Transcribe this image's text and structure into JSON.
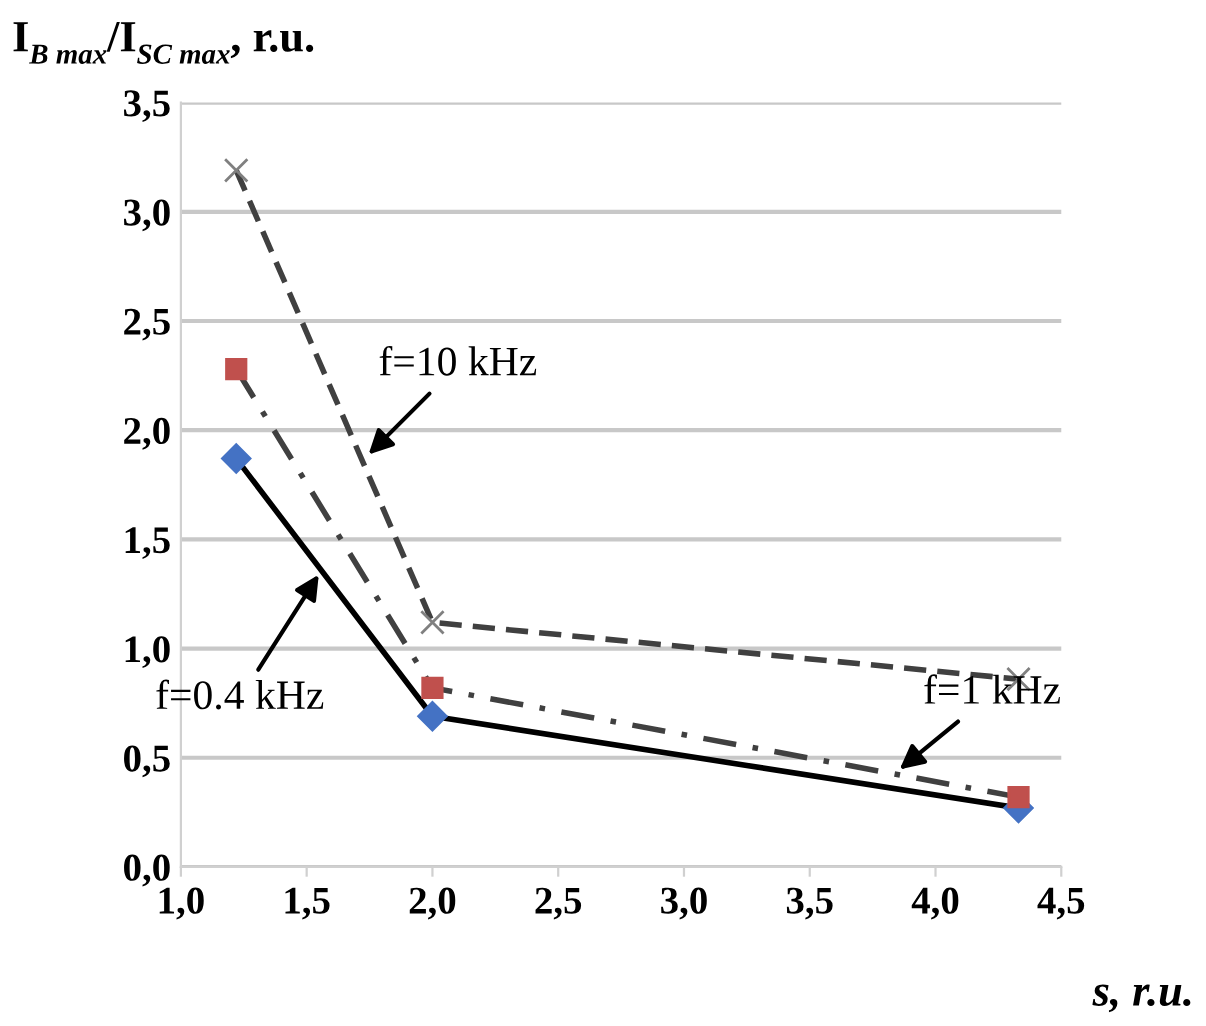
{
  "chart_data": {
    "type": "line",
    "ylabel": "I$_{B max}$/I$_{SC max}$, r.u.",
    "xlabel": "s, r.u.",
    "x": [
      1.22,
      2.0,
      4.33
    ],
    "series": [
      {
        "color": "#000000",
        "values": [
          1.87,
          0.69,
          0.27
        ],
        "marker": "diamond",
        "line_style": "solid"
      },
      {
        "color": "#404040",
        "values": [
          2.28,
          0.82,
          0.32
        ],
        "marker": "square",
        "line_style": "dashdot"
      },
      {
        "color": "#404040",
        "values": [
          3.19,
          1.12,
          0.86
        ],
        "marker": "cross",
        "line_style": "dashed"
      }
    ],
    "annotations": [
      {
        "text": "f=10 kHz",
        "x": 1.73,
        "y": 1.87
      },
      {
        "text": "f=0.4 kHz",
        "x": 1.56,
        "y": 1.36
      },
      {
        "text": "f=1 kHz",
        "x": 3.84,
        "y": 0.43
      }
    ],
    "xlim": [
      1.0,
      4.5
    ],
    "xticks": [
      {
        "value": 1.0,
        "label": "1,0"
      },
      {
        "value": 1.5,
        "label": "1,5"
      },
      {
        "value": 2.0,
        "label": "2,0"
      },
      {
        "value": 2.5,
        "label": "2,5"
      },
      {
        "value": 3.0,
        "label": "3,0"
      },
      {
        "value": 3.5,
        "label": "3,5"
      },
      {
        "value": 4.0,
        "label": "4,0"
      },
      {
        "value": 4.5,
        "label": "4,5"
      }
    ],
    "ylim": [
      0.0,
      3.5
    ],
    "yticks": [
      {
        "value": 0.0,
        "label": "0,0"
      },
      {
        "value": 0.5,
        "label": "0,5"
      },
      {
        "value": 1.0,
        "label": "1,0"
      },
      {
        "value": 1.5,
        "label": "1,5"
      },
      {
        "value": 2.0,
        "label": "2,0"
      },
      {
        "value": 2.5,
        "label": "2,5"
      },
      {
        "value": 3.0,
        "label": "3,0"
      },
      {
        "value": 3.5,
        "label": "3,5"
      }
    ],
    "grid": "y"
  }
}
